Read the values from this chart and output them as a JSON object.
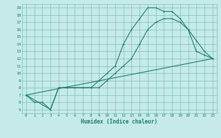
{
  "xlabel": "Humidex (Indice chaleur)",
  "bg_color": "#c5eae7",
  "grid_color": "#7dbdb8",
  "line_color": "#1a7a6e",
  "xlim": [
    -0.5,
    23.5
  ],
  "ylim": [
    4.5,
    19.5
  ],
  "xticks": [
    0,
    1,
    2,
    3,
    4,
    5,
    6,
    7,
    8,
    9,
    10,
    11,
    12,
    13,
    14,
    15,
    16,
    17,
    18,
    19,
    20,
    21,
    22,
    23
  ],
  "yticks": [
    5,
    6,
    7,
    8,
    9,
    10,
    11,
    12,
    13,
    14,
    15,
    16,
    17,
    18,
    19
  ],
  "line1_x": [
    0,
    1,
    2,
    3,
    4,
    5,
    6,
    7,
    8,
    9,
    10,
    11,
    12,
    13,
    14,
    15,
    16,
    17,
    18,
    19,
    20,
    21,
    22,
    23
  ],
  "line1_y": [
    7,
    6,
    6,
    5,
    8,
    8,
    8,
    8,
    8,
    9,
    10,
    11,
    14,
    16,
    17.5,
    19,
    19,
    18.5,
    18.5,
    17.5,
    16,
    14.5,
    13,
    12
  ],
  "line2_x": [
    0,
    3,
    4,
    5,
    6,
    7,
    8,
    9,
    10,
    11,
    12,
    13,
    14,
    15,
    16,
    17,
    18,
    19,
    20,
    21,
    22,
    23
  ],
  "line2_y": [
    7,
    5,
    8,
    8,
    8,
    8,
    8,
    8,
    9,
    10,
    11,
    12,
    14,
    16,
    17,
    17.5,
    17.5,
    17,
    16,
    13,
    12.5,
    12
  ],
  "line3_x": [
    0,
    23
  ],
  "line3_y": [
    7,
    12
  ]
}
